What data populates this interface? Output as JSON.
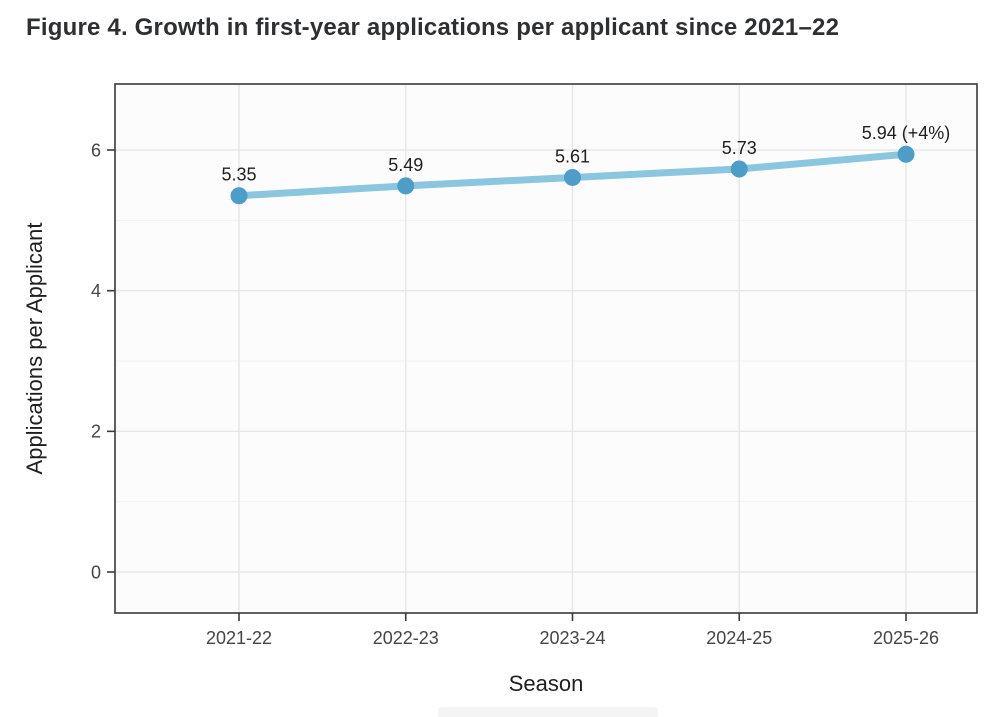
{
  "title": "Figure 4. Growth in first-year applications per applicant since 2021–22",
  "chart_data": {
    "type": "line",
    "title": "Figure 4. Growth in first-year applications per applicant since 2021–22",
    "categories": [
      "2021-22",
      "2022-23",
      "2023-24",
      "2024-25",
      "2025-26"
    ],
    "series": [
      {
        "name": "Applications per Applicant",
        "values": [
          5.35,
          5.49,
          5.61,
          5.73,
          5.94
        ]
      }
    ],
    "point_labels": [
      "5.35",
      "5.49",
      "5.61",
      "5.73",
      "5.94 (+4%)"
    ],
    "xlabel": "Season",
    "ylabel": "Applications per Applicant",
    "ylim": [
      0,
      7
    ],
    "yticks": [
      0,
      2,
      4,
      6
    ],
    "yticks_minor": [
      1,
      3,
      5
    ],
    "grid": "horizontal major+minor, vertical major only",
    "legend": "none",
    "colors": {
      "line": "#8BC6E0",
      "point": "#4D9DC8",
      "title_text": "#2D2F33",
      "axis_title_text": "#1F1F1F",
      "tick_label_text": "#454545",
      "data_label_text": "#1F1F1F",
      "panel_border": "#3A3A3A",
      "grid_major": "#E6E6E6",
      "grid_minor": "#F2F2F2",
      "panel_background": "#FCFCFC",
      "page_background": "#FFFFFF"
    }
  }
}
